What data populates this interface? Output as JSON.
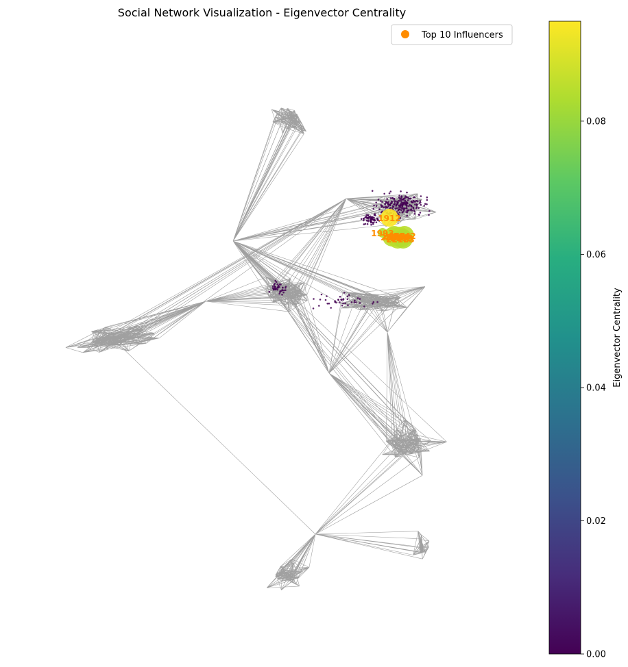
{
  "chart_data": {
    "type": "network",
    "title": "Social Network Visualization - Eigenvector Centrality",
    "legend": {
      "label": "Top 10 Influencers",
      "marker_color": "#ff8c00",
      "placement": "top-right"
    },
    "colorbar": {
      "label": "Eigenvector Centrality",
      "colormap": "viridis",
      "range": [
        0.0,
        0.095
      ],
      "ticks": [
        "0.00",
        "0.02",
        "0.04",
        "0.06",
        "0.08"
      ]
    },
    "edge_color": "#808080",
    "highlighted_nodes": [
      {
        "label": "1912",
        "centrality": 0.095
      },
      {
        "label": "2266",
        "centrality": 0.087
      },
      {
        "label": "2206",
        "centrality": 0.086
      },
      {
        "label": "2233",
        "centrality": 0.086
      },
      {
        "label": "2464",
        "centrality": 0.085
      },
      {
        "label": "2142",
        "centrality": 0.085
      },
      {
        "label": "2218",
        "centrality": 0.085
      },
      {
        "label": "2078",
        "centrality": 0.085
      },
      {
        "label": "2123",
        "centrality": 0.084
      },
      {
        "label": "1993",
        "centrality": 0.084
      }
    ],
    "grid": false,
    "axes_visible": false
  }
}
